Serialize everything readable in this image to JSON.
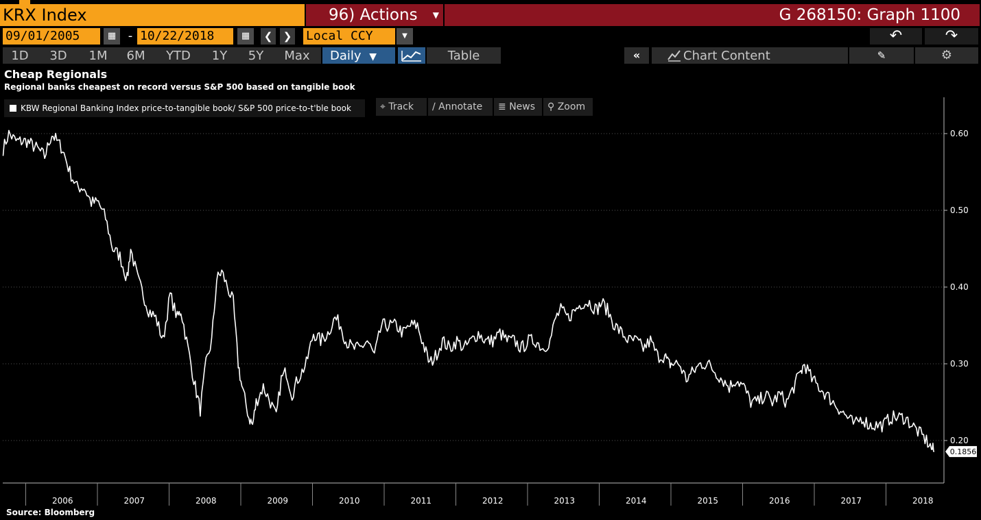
{
  "header": {
    "ticker": "KRX Index",
    "actions": "96) Actions",
    "graph_id": "G 268150: Graph 1100"
  },
  "dates": {
    "start": "09/01/2005",
    "end": "10/22/2018",
    "currency": "Local CCY"
  },
  "ranges": [
    "1D",
    "3D",
    "1M",
    "6M",
    "YTD",
    "1Y",
    "5Y",
    "Max"
  ],
  "periodicity": "Daily",
  "table_label": "Table",
  "chart_content_label": "Chart Content",
  "tools": {
    "track": "Track",
    "annotate": "Annotate",
    "news": "News",
    "zoom": "Zoom"
  },
  "colors": {
    "accent_orange": "#f7a11a",
    "header_red": "#8b1420",
    "active_blue": "#2a5b8c",
    "series_line": "#ffffff"
  },
  "chart_data": {
    "type": "line",
    "title": "Cheap Regionals",
    "subtitle": "Regional banks cheapest on record versus S&P 500 based on tangible book",
    "series_name": "KBW Regional Banking Index price-to-tangible book/ S&P 500 price-to-t'ble book",
    "last_value_label": "0.1856",
    "x_tick_labels": [
      "2006",
      "2007",
      "2008",
      "2009",
      "2010",
      "2011",
      "2012",
      "2013",
      "2014",
      "2015",
      "2016",
      "2017",
      "2018"
    ],
    "y_tick_labels": [
      "0.60",
      "0.50",
      "0.40",
      "0.30",
      "0.20"
    ],
    "ylim": [
      0.15,
      0.65
    ],
    "xlim": [
      2005.67,
      2018.9
    ],
    "grid": "horizontal dotted",
    "points": [
      [
        2005.67,
        0.58
      ],
      [
        2005.75,
        0.6
      ],
      [
        2005.85,
        0.59
      ],
      [
        2006.0,
        0.59
      ],
      [
        2006.15,
        0.58
      ],
      [
        2006.25,
        0.57
      ],
      [
        2006.35,
        0.6
      ],
      [
        2006.42,
        0.59
      ],
      [
        2006.5,
        0.58
      ],
      [
        2006.6,
        0.55
      ],
      [
        2006.7,
        0.53
      ],
      [
        2006.8,
        0.53
      ],
      [
        2006.9,
        0.51
      ],
      [
        2007.0,
        0.51
      ],
      [
        2007.1,
        0.49
      ],
      [
        2007.2,
        0.45
      ],
      [
        2007.3,
        0.44
      ],
      [
        2007.4,
        0.41
      ],
      [
        2007.45,
        0.45
      ],
      [
        2007.55,
        0.41
      ],
      [
        2007.7,
        0.37
      ],
      [
        2007.8,
        0.36
      ],
      [
        2007.9,
        0.33
      ],
      [
        2008.0,
        0.39
      ],
      [
        2008.1,
        0.36
      ],
      [
        2008.15,
        0.37
      ],
      [
        2008.25,
        0.32
      ],
      [
        2008.35,
        0.27
      ],
      [
        2008.42,
        0.24
      ],
      [
        2008.5,
        0.3
      ],
      [
        2008.58,
        0.33
      ],
      [
        2008.65,
        0.41
      ],
      [
        2008.72,
        0.42
      ],
      [
        2008.8,
        0.4
      ],
      [
        2008.88,
        0.38
      ],
      [
        2008.95,
        0.3
      ],
      [
        2009.0,
        0.27
      ],
      [
        2009.1,
        0.23
      ],
      [
        2009.15,
        0.22
      ],
      [
        2009.2,
        0.25
      ],
      [
        2009.3,
        0.27
      ],
      [
        2009.4,
        0.25
      ],
      [
        2009.48,
        0.23
      ],
      [
        2009.55,
        0.28
      ],
      [
        2009.62,
        0.29
      ],
      [
        2009.7,
        0.26
      ],
      [
        2009.78,
        0.28
      ],
      [
        2009.9,
        0.3
      ],
      [
        2010.0,
        0.34
      ],
      [
        2010.1,
        0.33
      ],
      [
        2010.2,
        0.34
      ],
      [
        2010.3,
        0.36
      ],
      [
        2010.38,
        0.35
      ],
      [
        2010.45,
        0.33
      ],
      [
        2010.55,
        0.32
      ],
      [
        2010.65,
        0.32
      ],
      [
        2010.75,
        0.33
      ],
      [
        2010.85,
        0.31
      ],
      [
        2010.95,
        0.35
      ],
      [
        2011.05,
        0.35
      ],
      [
        2011.15,
        0.35
      ],
      [
        2011.25,
        0.34
      ],
      [
        2011.35,
        0.35
      ],
      [
        2011.45,
        0.35
      ],
      [
        2011.55,
        0.32
      ],
      [
        2011.62,
        0.3
      ],
      [
        2011.7,
        0.31
      ],
      [
        2011.8,
        0.33
      ],
      [
        2011.9,
        0.32
      ],
      [
        2012.0,
        0.33
      ],
      [
        2012.1,
        0.32
      ],
      [
        2012.2,
        0.33
      ],
      [
        2012.3,
        0.34
      ],
      [
        2012.4,
        0.33
      ],
      [
        2012.5,
        0.33
      ],
      [
        2012.6,
        0.34
      ],
      [
        2012.7,
        0.33
      ],
      [
        2012.8,
        0.33
      ],
      [
        2012.9,
        0.32
      ],
      [
        2013.0,
        0.33
      ],
      [
        2013.1,
        0.33
      ],
      [
        2013.2,
        0.32
      ],
      [
        2013.3,
        0.33
      ],
      [
        2013.38,
        0.36
      ],
      [
        2013.45,
        0.37
      ],
      [
        2013.55,
        0.36
      ],
      [
        2013.65,
        0.37
      ],
      [
        2013.75,
        0.38
      ],
      [
        2013.85,
        0.38
      ],
      [
        2013.95,
        0.37
      ],
      [
        2014.02,
        0.38
      ],
      [
        2014.1,
        0.37
      ],
      [
        2014.2,
        0.35
      ],
      [
        2014.3,
        0.34
      ],
      [
        2014.4,
        0.33
      ],
      [
        2014.5,
        0.33
      ],
      [
        2014.6,
        0.32
      ],
      [
        2014.7,
        0.33
      ],
      [
        2014.8,
        0.31
      ],
      [
        2014.9,
        0.31
      ],
      [
        2014.95,
        0.3
      ],
      [
        2015.0,
        0.3
      ],
      [
        2015.1,
        0.3
      ],
      [
        2015.2,
        0.28
      ],
      [
        2015.3,
        0.29
      ],
      [
        2015.4,
        0.3
      ],
      [
        2015.5,
        0.3
      ],
      [
        2015.6,
        0.29
      ],
      [
        2015.7,
        0.28
      ],
      [
        2015.8,
        0.27
      ],
      [
        2015.9,
        0.28
      ],
      [
        2016.0,
        0.27
      ],
      [
        2016.1,
        0.25
      ],
      [
        2016.2,
        0.25
      ],
      [
        2016.3,
        0.26
      ],
      [
        2016.4,
        0.25
      ],
      [
        2016.5,
        0.26
      ],
      [
        2016.6,
        0.25
      ],
      [
        2016.7,
        0.27
      ],
      [
        2016.8,
        0.29
      ],
      [
        2016.85,
        0.3
      ],
      [
        2016.95,
        0.28
      ],
      [
        2017.05,
        0.27
      ],
      [
        2017.15,
        0.26
      ],
      [
        2017.25,
        0.25
      ],
      [
        2017.35,
        0.24
      ],
      [
        2017.45,
        0.23
      ],
      [
        2017.55,
        0.22
      ],
      [
        2017.65,
        0.23
      ],
      [
        2017.75,
        0.22
      ],
      [
        2017.85,
        0.22
      ],
      [
        2017.95,
        0.22
      ],
      [
        2018.05,
        0.23
      ],
      [
        2018.15,
        0.23
      ],
      [
        2018.25,
        0.23
      ],
      [
        2018.35,
        0.22
      ],
      [
        2018.45,
        0.21
      ],
      [
        2018.55,
        0.2
      ],
      [
        2018.62,
        0.19
      ],
      [
        2018.66,
        0.1856
      ]
    ]
  },
  "source": "Source: Bloomberg"
}
